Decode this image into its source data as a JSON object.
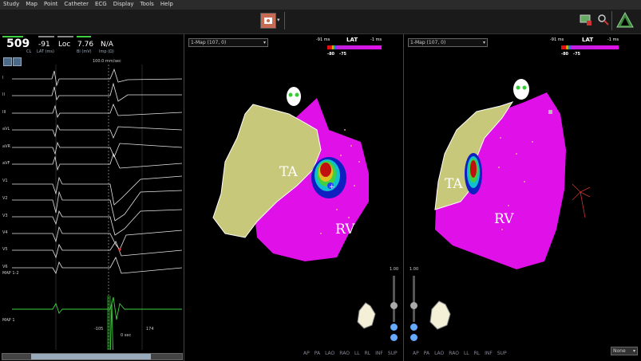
{
  "menu": [
    "Study",
    "Map",
    "Point",
    "Catheter",
    "ECG",
    "Display",
    "Tools",
    "Help"
  ],
  "stats": {
    "cl_value": "509",
    "cl_label": "CL",
    "lat_value": "-91",
    "lat_label": "LAT (ms)",
    "loc_value": "Loc",
    "bi_value": "7.76",
    "bi_label": "Bi (mV)",
    "imp_value": "N/A",
    "imp_label": "Imp (Ω)"
  },
  "ecg": {
    "sweep_label": "100.0 mm/sec",
    "leads": [
      "I",
      "II",
      "III",
      "aVL",
      "aVR",
      "aVF",
      "V1",
      "V2",
      "V3",
      "V4",
      "V5",
      "V6",
      "MAP 1-2",
      "MAP 1"
    ],
    "annotation_left": "-105",
    "annotation_mid": "0 sec",
    "annotation_right": "174"
  },
  "left_map": {
    "dropdown": "1-Map (107, 0)",
    "lat_title": "LAT",
    "lat_min": "-91 ms",
    "lat_max": "-1 ms",
    "lat_low": "-80",
    "lat_high": "-75",
    "label_ta": "TA",
    "label_rv": "RV",
    "zoom": "1.00"
  },
  "right_map": {
    "dropdown": "1-Map (107, 0)",
    "lat_title": "LAT",
    "lat_min": "-91 ms",
    "lat_max": "-1 ms",
    "lat_low": "-80",
    "lat_high": "-75",
    "label_ta": "TA",
    "label_rv": "RV",
    "zoom": "1.00"
  },
  "views": [
    "AP",
    "PA",
    "LAO",
    "RAO",
    "LL",
    "RL",
    "INF",
    "SUP"
  ],
  "none_select": "None",
  "colors": {
    "magenta": "#e010e8",
    "tricuspid": "#c8c87a",
    "ecg_green": "#3fcf3f",
    "panel_bg": "#000000"
  }
}
